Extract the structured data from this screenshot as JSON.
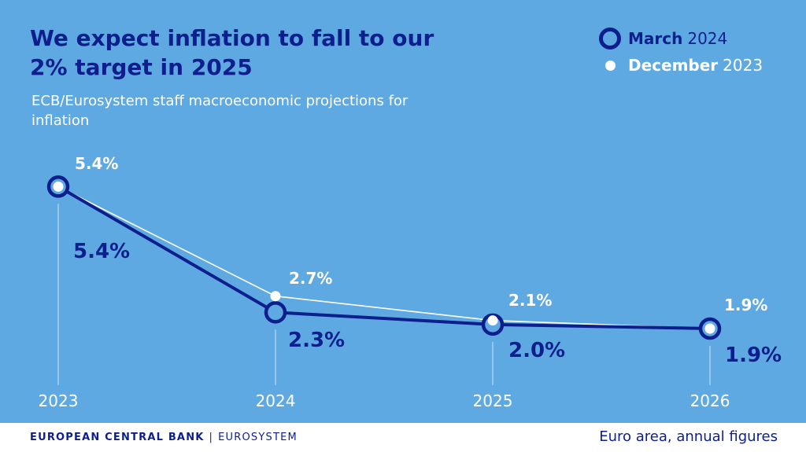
{
  "header": {
    "title": "We expect inflation to fall to our 2% target in 2025",
    "subtitle": "ECB/Eurosystem staff macroeconomic projections for inflation"
  },
  "legend": {
    "march": {
      "name": "March",
      "year": "2024"
    },
    "december": {
      "name": "December",
      "year": "2023"
    }
  },
  "footer": {
    "left_bold": "EUROPEAN CENTRAL BANK",
    "separator": "|",
    "left_rest": "EUROSYSTEM",
    "right": "Euro area, annual figures"
  },
  "colors": {
    "background": "#5fa9e3",
    "march": "#0d1f8c",
    "december": "#ffffff"
  },
  "chart_data": {
    "type": "line",
    "title": "We expect inflation to fall to our 2% target in 2025",
    "subtitle": "ECB/Eurosystem staff macroeconomic projections for inflation",
    "x": [
      "2023",
      "2024",
      "2025",
      "2026"
    ],
    "ylim": [
      1.5,
      5.6
    ],
    "grid": false,
    "legend_position": "top-right",
    "series": [
      {
        "name": "March 2024",
        "values": [
          5.4,
          2.3,
          2.0,
          1.9
        ],
        "labels": [
          "5.4%",
          "2.3%",
          "2.0%",
          "1.9%"
        ],
        "color": "#0d1f8c"
      },
      {
        "name": "December 2023",
        "values": [
          5.4,
          2.7,
          2.1,
          1.9
        ],
        "labels": [
          "5.4%",
          "2.7%",
          "2.1%",
          "1.9%"
        ],
        "color": "#ffffff"
      }
    ]
  }
}
